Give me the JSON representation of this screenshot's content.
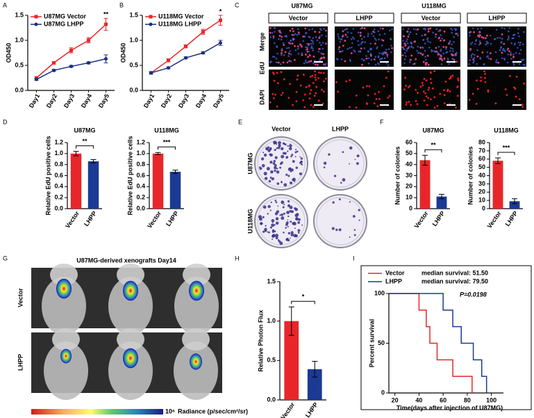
{
  "figure": {
    "panel_labels": [
      "A",
      "B",
      "C",
      "D",
      "E",
      "F",
      "G",
      "H",
      "I"
    ],
    "C": {
      "cell_lines": [
        "U87MG",
        "U118MG"
      ],
      "groups": [
        "Vector",
        "LHPP",
        "Vector",
        "LHPP"
      ],
      "stain_labels": [
        "DAPI",
        "EdU",
        "Merge"
      ]
    },
    "E": {
      "groups": [
        "Vector",
        "LHPP"
      ],
      "cell_lines": [
        "U87MG",
        "U118MG"
      ]
    },
    "G": {
      "title": "U87MG-derived xenografts Day14",
      "groups": [
        "Vector",
        "LHPP"
      ],
      "colorbar_exponent": "10⁶",
      "colorbar_label": "Radiance (p/sec/cm²/sr)"
    }
  },
  "chart_data": [
    {
      "type": "line",
      "ylabel": "OD450",
      "categories": [
        "Day1",
        "Day2",
        "Day3",
        "Day4",
        "Day5"
      ],
      "series": [
        {
          "name": "U87MG Vector",
          "color": "#e8262a",
          "marker": "square",
          "values": [
            0.25,
            0.55,
            0.8,
            1.0,
            1.32
          ],
          "errors": [
            0.02,
            0.02,
            0.05,
            0.05,
            0.12
          ]
        },
        {
          "name": "U87MG LHPP",
          "color": "#1a2f80",
          "marker": "circle",
          "values": [
            0.22,
            0.4,
            0.48,
            0.55,
            0.63
          ],
          "errors": [
            0.02,
            0.02,
            0.02,
            0.02,
            0.08
          ]
        }
      ],
      "annotation": "**",
      "ylim": [
        0,
        1.5
      ],
      "yticks": [
        {
          "value": 0,
          "label": "0.0"
        },
        0.5,
        {
          "value": 1,
          "label": "1.0"
        },
        1.5
      ]
    },
    {
      "type": "line",
      "ylabel": "OD450",
      "categories": [
        "Day1",
        "Day2",
        "Day3",
        "Day4",
        "Day5"
      ],
      "series": [
        {
          "name": "U118MG Vector",
          "color": "#e8262a",
          "marker": "square",
          "values": [
            0.35,
            0.6,
            0.88,
            1.17,
            1.4
          ],
          "errors": [
            0.02,
            0.03,
            0.03,
            0.05,
            0.1
          ]
        },
        {
          "name": "U118MG LHPP",
          "color": "#1a2f80",
          "marker": "circle",
          "values": [
            0.35,
            0.45,
            0.65,
            0.75,
            0.95
          ],
          "errors": [
            0.02,
            0.02,
            0.02,
            0.02,
            0.05
          ]
        }
      ],
      "annotation": "*",
      "ylim": [
        0,
        1.5
      ],
      "yticks": [
        {
          "value": 0,
          "label": "0.0"
        },
        0.5,
        {
          "value": 1,
          "label": "1.0"
        },
        1.5
      ]
    },
    {
      "type": "bar",
      "title": "U87MG",
      "ylabel": "Relative EdU positive cells",
      "categories": [
        "Vector",
        "LHPP"
      ],
      "values": [
        1.0,
        0.86
      ],
      "errors": [
        0.04,
        0.03
      ],
      "colors": [
        "#e8262a",
        "#1a3a94"
      ],
      "annotation": "**",
      "ylim": [
        0,
        1.2
      ],
      "yticks": [
        {
          "value": 0,
          "label": "0.0"
        },
        0.2,
        0.4,
        0.6,
        0.8,
        {
          "value": 1,
          "label": "1.0"
        },
        1.2
      ]
    },
    {
      "type": "bar",
      "title": "U118MG",
      "ylabel": "Relative EdU positive cells",
      "categories": [
        "Vector",
        "LHPP"
      ],
      "values": [
        1.0,
        0.67
      ],
      "errors": [
        0.02,
        0.03
      ],
      "colors": [
        "#e8262a",
        "#1a3a94"
      ],
      "annotation": "***",
      "ylim": [
        0,
        1.2
      ],
      "yticks": [
        {
          "value": 0,
          "label": "0.0"
        },
        0.2,
        0.4,
        0.6,
        0.8,
        {
          "value": 1,
          "label": "1.0"
        },
        1.2
      ]
    },
    {
      "type": "bar",
      "title": "U87MG",
      "ylabel": "Number of colonies",
      "categories": [
        "Vector",
        "LHPP"
      ],
      "values": [
        44,
        11
      ],
      "errors": [
        4.5,
        2
      ],
      "colors": [
        "#e8262a",
        "#1a3a94"
      ],
      "annotation": "**",
      "ylim": [
        0,
        60
      ],
      "yticks": [
        0,
        10,
        20,
        30,
        40,
        50,
        60
      ]
    },
    {
      "type": "bar",
      "title": "U118MG",
      "ylabel": "Number of colonies",
      "categories": [
        "Vector",
        "LHPP"
      ],
      "values": [
        58,
        9
      ],
      "errors": [
        3.5,
        3
      ],
      "colors": [
        "#e8262a",
        "#1a3a94"
      ],
      "annotation": "***",
      "ylim": [
        0,
        80
      ],
      "yticks": [
        0,
        10,
        20,
        30,
        40,
        50,
        60,
        70,
        80
      ]
    },
    {
      "type": "bar",
      "ylabel": "Relative Photon Flux",
      "categories": [
        "Vector",
        "LHPP"
      ],
      "values": [
        1.0,
        0.39
      ],
      "errors": [
        0.18,
        0.1
      ],
      "colors": [
        "#e8262a",
        "#1a3a94"
      ],
      "annotation": "*",
      "ylim": [
        0,
        1.5
      ],
      "yticks": [
        {
          "value": 0,
          "label": "0.0"
        },
        0.5,
        {
          "value": 1,
          "label": "1.0"
        },
        1.5
      ]
    },
    {
      "type": "step",
      "xlabel": "Time(days after injection of U87MG)",
      "ylabel": "Percent survival",
      "series": [
        {
          "name": "Vector",
          "median_label": "median survival: 51.50",
          "color": "#e8262a",
          "x": [
            15,
            40,
            46,
            49,
            55,
            68,
            84
          ],
          "values": [
            100,
            83.3,
            66.7,
            50,
            33.3,
            16.7,
            0
          ]
        },
        {
          "name": "LHPP",
          "median_label": "median survival: 79.50",
          "color": "#1a3a94",
          "x": [
            15,
            60,
            68,
            75,
            85,
            92,
            96
          ],
          "values": [
            100,
            83.3,
            66.7,
            50,
            33.3,
            16.7,
            0
          ]
        }
      ],
      "annotation": "P=0.0198",
      "xlim": [
        15,
        110
      ],
      "xticks": [
        20,
        40,
        60,
        80,
        100
      ],
      "ylim": [
        0,
        100
      ],
      "yticks": [
        0,
        50,
        100
      ]
    }
  ]
}
